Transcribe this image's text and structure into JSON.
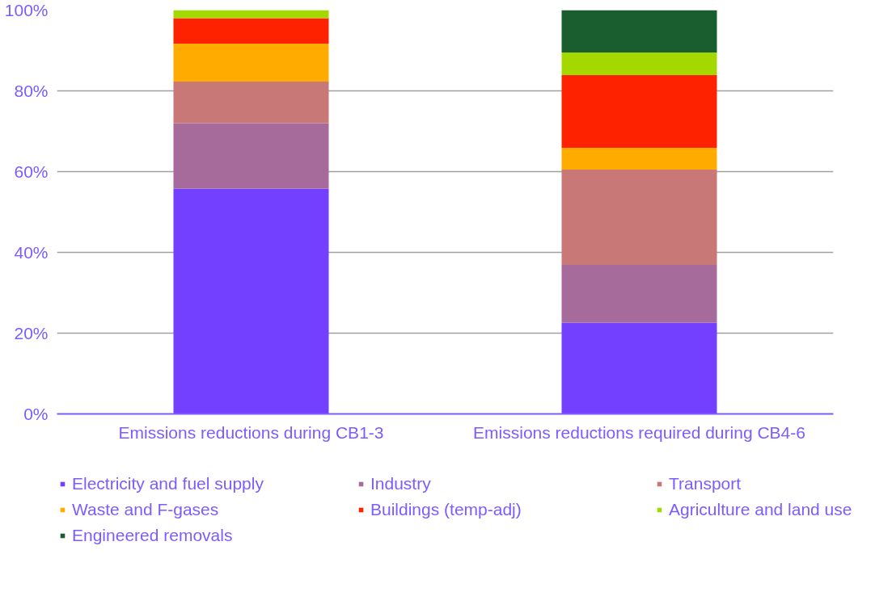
{
  "chart_data": {
    "type": "bar",
    "stacked": true,
    "categories": [
      "Emissions reductions during CB1-3",
      "Emissions reductions required during CB4-6"
    ],
    "series": [
      {
        "name": "Electricity and fuel supply",
        "color": "#7340ff",
        "values": [
          55.8,
          22.6
        ]
      },
      {
        "name": "Industry",
        "color": "#a66b9a",
        "values": [
          16.2,
          14.3
        ]
      },
      {
        "name": "Transport",
        "color": "#c97878",
        "values": [
          10.3,
          23.6
        ]
      },
      {
        "name": "Waste and F-gases",
        "color": "#ffab00",
        "values": [
          9.4,
          5.4
        ]
      },
      {
        "name": "Buildings (temp-adj)",
        "color": "#ff2200",
        "values": [
          6.3,
          18.0
        ]
      },
      {
        "name": "Agriculture and land use",
        "color": "#a3d900",
        "values": [
          2.0,
          5.6
        ]
      },
      {
        "name": "Engineered removals",
        "color": "#1a5e30",
        "values": [
          0,
          10.5
        ]
      }
    ],
    "ylim": [
      0,
      100
    ],
    "yticks": [
      {
        "value": 0,
        "label": "0%"
      },
      {
        "value": 20,
        "label": "20%"
      },
      {
        "value": 40,
        "label": "40%"
      },
      {
        "value": 60,
        "label": "60%"
      },
      {
        "value": 80,
        "label": "80%"
      },
      {
        "value": 100,
        "label": "100%"
      }
    ],
    "grid": "y",
    "legend": "bottom"
  }
}
